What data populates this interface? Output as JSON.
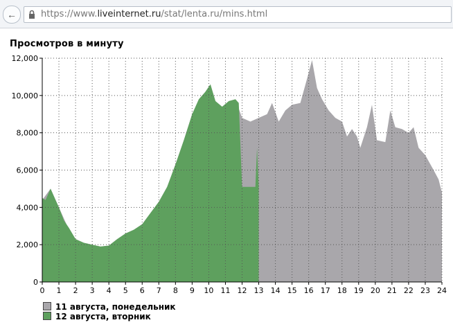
{
  "browser": {
    "url_scheme": "https://www.",
    "url_host": "liveinternet.ru",
    "url_path": "/stat/lenta.ru/mins.html",
    "back_icon": "back-arrow-icon",
    "lock_icon": "lock-icon"
  },
  "page": {
    "title": "Просмотров в минуту"
  },
  "chart_data": {
    "type": "area",
    "title": "Просмотров в минуту",
    "xlim": [
      0,
      24
    ],
    "ylim": [
      0,
      12000
    ],
    "x_ticks": [
      "0",
      "1",
      "2",
      "3",
      "4",
      "5",
      "6",
      "7",
      "8",
      "9",
      "10",
      "11",
      "12",
      "13",
      "14",
      "15",
      "16",
      "17",
      "18",
      "19",
      "20",
      "21",
      "22",
      "23",
      "24"
    ],
    "y_ticks": [
      "0",
      "2,000",
      "4,000",
      "6,000",
      "8,000",
      "10,000",
      "12,000"
    ],
    "grid": true,
    "legend_position": "bottom-left",
    "series": [
      {
        "name": "11 августа, понедельник",
        "color": "#a9a7ab",
        "points": [
          [
            0,
            4400
          ],
          [
            0.5,
            5000
          ],
          [
            1,
            4000
          ],
          [
            1.5,
            3000
          ],
          [
            2,
            2300
          ],
          [
            2.5,
            2100
          ],
          [
            3,
            2000
          ],
          [
            3.5,
            1900
          ],
          [
            4,
            1950
          ],
          [
            4.5,
            2300
          ],
          [
            5,
            2600
          ],
          [
            5.5,
            2800
          ],
          [
            6,
            3100
          ],
          [
            6.5,
            3700
          ],
          [
            7,
            4300
          ],
          [
            7.5,
            5100
          ],
          [
            8,
            6300
          ],
          [
            8.5,
            7600
          ],
          [
            9,
            9000
          ],
          [
            9.4,
            9700
          ],
          [
            9.8,
            10200
          ],
          [
            10.1,
            10600
          ],
          [
            10.4,
            9700
          ],
          [
            10.8,
            9300
          ],
          [
            11.2,
            9600
          ],
          [
            11.6,
            9800
          ],
          [
            12,
            8800
          ],
          [
            12.5,
            8600
          ],
          [
            13,
            8800
          ],
          [
            13.5,
            9000
          ],
          [
            13.8,
            9600
          ],
          [
            14.2,
            8600
          ],
          [
            14.6,
            9200
          ],
          [
            15,
            9500
          ],
          [
            15.5,
            9600
          ],
          [
            15.9,
            10900
          ],
          [
            16.2,
            11900
          ],
          [
            16.5,
            10400
          ],
          [
            16.8,
            9800
          ],
          [
            17.2,
            9200
          ],
          [
            17.6,
            8800
          ],
          [
            18,
            8600
          ],
          [
            18.3,
            7800
          ],
          [
            18.6,
            8200
          ],
          [
            18.9,
            7800
          ],
          [
            19.1,
            7200
          ],
          [
            19.5,
            8300
          ],
          [
            19.8,
            9500
          ],
          [
            20.1,
            7600
          ],
          [
            20.6,
            7500
          ],
          [
            20.9,
            9200
          ],
          [
            21.2,
            8300
          ],
          [
            21.6,
            8200
          ],
          [
            22,
            8000
          ],
          [
            22.3,
            8300
          ],
          [
            22.6,
            7200
          ],
          [
            23,
            6800
          ],
          [
            23.5,
            6000
          ],
          [
            23.8,
            5500
          ],
          [
            24,
            4800
          ]
        ]
      },
      {
        "name": "12 августа, вторник",
        "color": "#5ea05e",
        "points": [
          [
            0,
            4500
          ],
          [
            0.2,
            4400
          ],
          [
            0.5,
            5000
          ],
          [
            0.8,
            4400
          ],
          [
            1,
            4000
          ],
          [
            1.3,
            3300
          ],
          [
            1.6,
            2900
          ],
          [
            2,
            2300
          ],
          [
            2.5,
            2100
          ],
          [
            3,
            2000
          ],
          [
            3.5,
            1900
          ],
          [
            4,
            1950
          ],
          [
            4.5,
            2300
          ],
          [
            5,
            2600
          ],
          [
            5.5,
            2800
          ],
          [
            6,
            3100
          ],
          [
            6.5,
            3700
          ],
          [
            7,
            4300
          ],
          [
            7.5,
            5100
          ],
          [
            8,
            6300
          ],
          [
            8.5,
            7600
          ],
          [
            9,
            9000
          ],
          [
            9.4,
            9800
          ],
          [
            9.8,
            10200
          ],
          [
            10.1,
            10600
          ],
          [
            10.4,
            9700
          ],
          [
            10.8,
            9400
          ],
          [
            11.2,
            9700
          ],
          [
            11.6,
            9800
          ],
          [
            11.8,
            9600
          ],
          [
            12,
            5100
          ],
          [
            12.4,
            5100
          ],
          [
            12.8,
            5100
          ],
          [
            12.9,
            7200
          ],
          [
            13,
            5100
          ]
        ]
      }
    ]
  }
}
